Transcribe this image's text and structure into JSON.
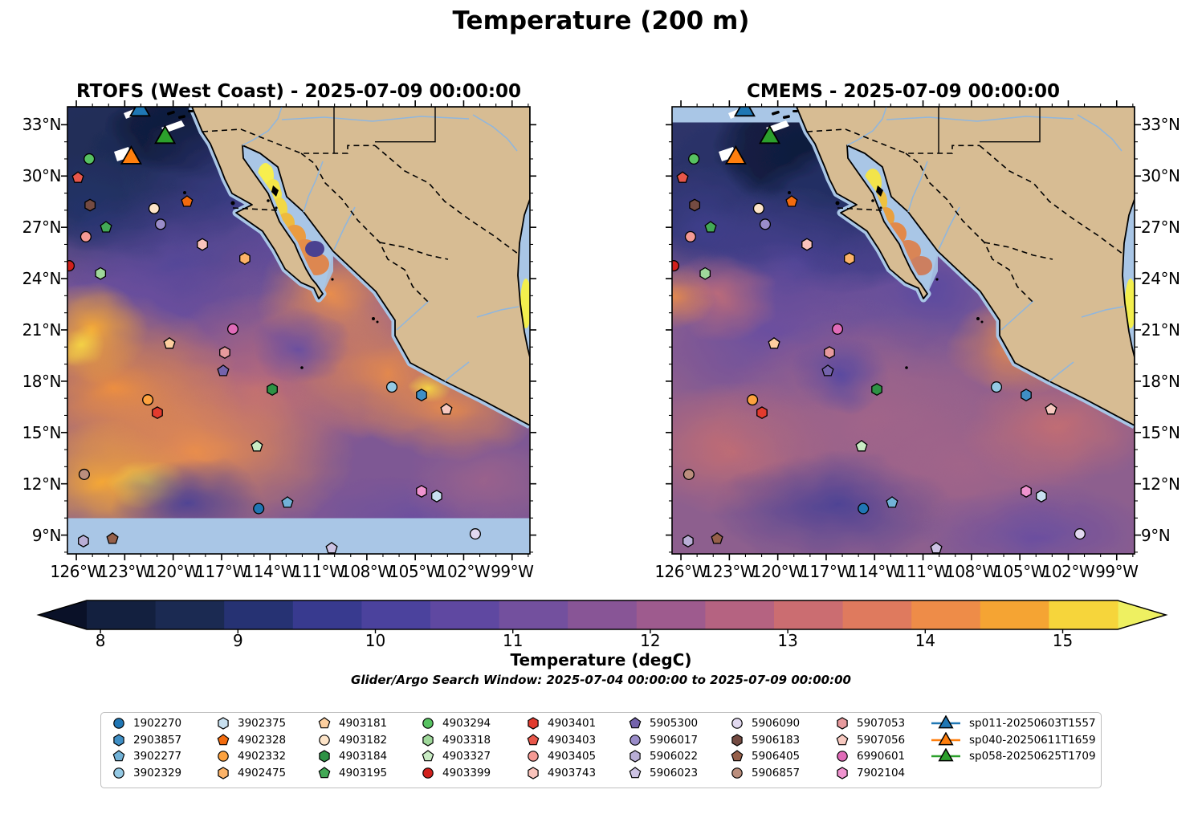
{
  "suptitle": "Temperature (200 m)",
  "caption": "Glider/Argo Search Window: 2025-07-04 00:00:00 to 2025-07-09 00:00:00",
  "panels": [
    {
      "id": "rtofs",
      "title": "RTOFS (West Coast) - 2025-07-09 00:00:00"
    },
    {
      "id": "cmems",
      "title": "CMEMS - 2025-07-09 00:00:00"
    }
  ],
  "axis": {
    "lon_labels": [
      "126°W",
      "123°W",
      "120°W",
      "117°W",
      "114°W",
      "111°W",
      "108°W",
      "105°W",
      "102°W",
      "99°W"
    ],
    "lat_labels": [
      "33°N",
      "30°N",
      "27°N",
      "24°N",
      "21°N",
      "18°N",
      "15°N",
      "12°N",
      "9°N"
    ]
  },
  "colorbar": {
    "label": "Temperature (degC)",
    "tick_labels": [
      "8",
      "9",
      "10",
      "11",
      "12",
      "13",
      "14",
      "15"
    ],
    "tick_values": [
      8,
      9,
      10,
      11,
      12,
      13,
      14,
      15
    ],
    "value_min": 7.9,
    "value_max": 15.4,
    "segment_colors": [
      "#13203f",
      "#1b2a52",
      "#263273",
      "#383a8f",
      "#4b429d",
      "#5f48a1",
      "#73509e",
      "#885596",
      "#9e5b8e",
      "#b56381",
      "#cb6d71",
      "#df7a5e",
      "#ee8c48",
      "#f5a433",
      "#f6d53b"
    ],
    "arrow_left_color": "#0a1128",
    "arrow_right_color": "#eef061"
  },
  "map_colors": {
    "land": "#d7bc93",
    "coastline": "#000000",
    "masked_water": "#a9c6e6",
    "river": "#8fb6de",
    "border_dashed": "#000000"
  },
  "markers": {
    "floats": [
      {
        "id": "1902270",
        "shape": "circle",
        "color": "#2076b4",
        "lon": -114.7,
        "lat": 10.55
      },
      {
        "id": "2903857",
        "shape": "hexagon",
        "color": "#3f8fc5",
        "lon": -104.61,
        "lat": 17.19
      },
      {
        "id": "3902277",
        "shape": "pentagon",
        "color": "#72b2d7",
        "lon": -112.92,
        "lat": 10.9
      },
      {
        "id": "3902329",
        "shape": "circle",
        "color": "#94c9e4",
        "lon": -106.45,
        "lat": 17.66
      },
      {
        "id": "3902375",
        "shape": "hexagon",
        "color": "#c8e0f0",
        "lon": -103.67,
        "lat": 11.28
      },
      {
        "id": "4902328",
        "shape": "pentagon",
        "color": "#f26b0e",
        "lon": -119.14,
        "lat": 28.5
      },
      {
        "id": "4902332",
        "shape": "circle",
        "color": "#fda23f",
        "lon": -121.57,
        "lat": 16.91
      },
      {
        "id": "4902475",
        "shape": "hexagon",
        "color": "#fcb368",
        "lon": -115.56,
        "lat": 25.17
      },
      {
        "id": "4903181",
        "shape": "pentagon",
        "color": "#fdcf9f",
        "lon": -120.23,
        "lat": 20.2
      },
      {
        "id": "4903182",
        "shape": "circle",
        "color": "#fde4c8",
        "lon": -121.18,
        "lat": 28.1
      },
      {
        "id": "4903184",
        "shape": "hexagon",
        "color": "#2e9245",
        "lon": -113.86,
        "lat": 17.52
      },
      {
        "id": "4903195",
        "shape": "pentagon",
        "color": "#43a956",
        "lon": -124.16,
        "lat": 27.0
      },
      {
        "id": "4903294",
        "shape": "circle",
        "color": "#57c261",
        "lon": -125.2,
        "lat": 31.0
      },
      {
        "id": "4903318",
        "shape": "hexagon",
        "color": "#9fd89a",
        "lon": -124.5,
        "lat": 24.3
      },
      {
        "id": "4903327",
        "shape": "pentagon",
        "color": "#c9ecc4",
        "lon": -114.81,
        "lat": 14.19
      },
      {
        "id": "4903399",
        "shape": "circle",
        "color": "#d1201d",
        "lon": -126.45,
        "lat": 24.75
      },
      {
        "id": "4903401",
        "shape": "hexagon",
        "color": "#e23b2e",
        "lon": -120.98,
        "lat": 16.16
      },
      {
        "id": "4903403",
        "shape": "pentagon",
        "color": "#e8574a",
        "lon": -125.9,
        "lat": 29.9
      },
      {
        "id": "4903405",
        "shape": "circle",
        "color": "#f59a94",
        "lon": -125.41,
        "lat": 26.45
      },
      {
        "id": "4903743",
        "shape": "hexagon",
        "color": "#fac3bb",
        "lon": -118.19,
        "lat": 26.0
      },
      {
        "id": "5905300",
        "shape": "pentagon",
        "color": "#7463ac",
        "lon": -116.9,
        "lat": 18.6
      },
      {
        "id": "5906017",
        "shape": "circle",
        "color": "#9a8cc9",
        "lon": -120.78,
        "lat": 27.18
      },
      {
        "id": "5906022",
        "shape": "hexagon",
        "color": "#b9aed6",
        "lon": -125.56,
        "lat": 8.65
      },
      {
        "id": "5906023",
        "shape": "pentagon",
        "color": "#cdc3e4",
        "lon": -110.18,
        "lat": 8.23
      },
      {
        "id": "5906090",
        "shape": "circle",
        "color": "#e2d9f0",
        "lon": -101.28,
        "lat": 9.07
      },
      {
        "id": "5906183",
        "shape": "hexagon",
        "color": "#744b42",
        "lon": -125.15,
        "lat": 28.3
      },
      {
        "id": "5906405",
        "shape": "pentagon",
        "color": "#96604a",
        "lon": -123.76,
        "lat": 8.79
      },
      {
        "id": "5906857",
        "shape": "circle",
        "color": "#bb8e7d",
        "lon": -125.51,
        "lat": 12.55
      },
      {
        "id": "5907053",
        "shape": "hexagon",
        "color": "#e79a9d",
        "lon": -116.8,
        "lat": 19.68
      },
      {
        "id": "5907056",
        "shape": "pentagon",
        "color": "#f7c9c0",
        "lon": -103.07,
        "lat": 16.35
      },
      {
        "id": "6990601",
        "shape": "circle",
        "color": "#e06bb8",
        "lon": -116.3,
        "lat": 21.05
      },
      {
        "id": "7902104",
        "shape": "hexagon",
        "color": "#ef93cf",
        "lon": -104.61,
        "lat": 11.56
      }
    ],
    "gliders": [
      {
        "id": "sp011-20250603T1557",
        "color": "#1f77b4",
        "lon": -122.05,
        "lat": 33.9
      },
      {
        "id": "sp040-20250611T1659",
        "color": "#ff7f0e",
        "lon": -122.6,
        "lat": 31.1
      },
      {
        "id": "sp058-20250625T1709",
        "color": "#2ca02c",
        "lon": -120.5,
        "lat": 32.3
      }
    ]
  }
}
